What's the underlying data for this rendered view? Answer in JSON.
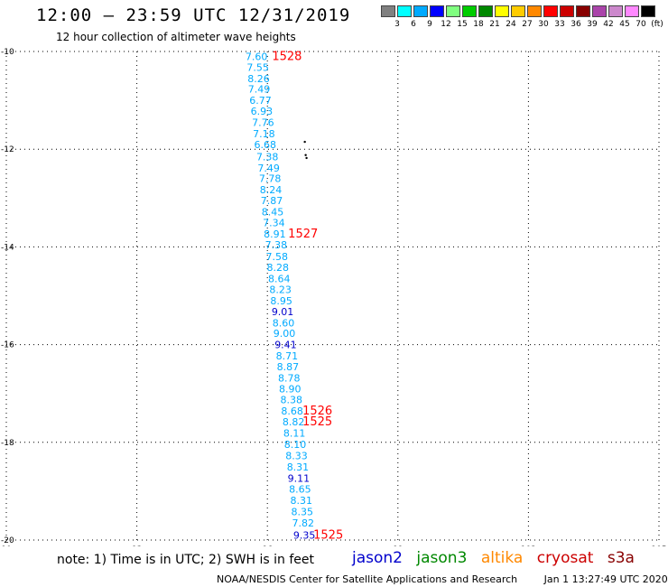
{
  "header": {
    "title": "12:00 – 23:59 UTC 12/31/2019",
    "subtitle": "12 hour collection of altimeter wave heights"
  },
  "color_scale": {
    "labels": [
      "3",
      "6",
      "9",
      "12",
      "15",
      "18",
      "21",
      "24",
      "27",
      "30",
      "33",
      "36",
      "39",
      "42",
      "45",
      "70",
      "(ft)"
    ],
    "colors": [
      "#808080",
      "#00ffff",
      "#00aaff",
      "#0000ff",
      "#80ff80",
      "#00cc00",
      "#008800",
      "#ffff00",
      "#ffcc00",
      "#ff8800",
      "#ff0000",
      "#cc0000",
      "#880000",
      "#aa44aa",
      "#cc88cc",
      "#ff88ff",
      "#000000"
    ]
  },
  "chart_data": {
    "type": "scatter",
    "title": "12:00 – 23:59 UTC 12/31/2019",
    "subtitle": "12 hour collection of altimeter wave heights",
    "xlim": [
      90,
      105
    ],
    "ylim": [
      -20,
      -10
    ],
    "x_ticks": [
      "90",
      "93",
      "96",
      "99",
      "102",
      "105"
    ],
    "y_ticks": [
      "-10",
      "-12",
      "-14",
      "-16",
      "-18",
      "-20"
    ],
    "grid": true,
    "wave_heights": [
      {
        "lon": 95.75,
        "lat": -10.1,
        "swh": "7.60",
        "color": "#00aaff"
      },
      {
        "lon": 95.78,
        "lat": -10.32,
        "swh": "7.55",
        "color": "#00aaff"
      },
      {
        "lon": 95.8,
        "lat": -10.55,
        "swh": "8.26",
        "color": "#00aaff"
      },
      {
        "lon": 95.81,
        "lat": -10.77,
        "swh": "7.49",
        "color": "#00aaff"
      },
      {
        "lon": 95.84,
        "lat": -11.0,
        "swh": "6.77",
        "color": "#00aaff"
      },
      {
        "lon": 95.87,
        "lat": -11.22,
        "swh": "6.93",
        "color": "#00aaff"
      },
      {
        "lon": 95.9,
        "lat": -11.45,
        "swh": "7.76",
        "color": "#00aaff"
      },
      {
        "lon": 95.92,
        "lat": -11.68,
        "swh": "7.18",
        "color": "#00aaff"
      },
      {
        "lon": 95.95,
        "lat": -11.9,
        "swh": "6.68",
        "color": "#00aaff"
      },
      {
        "lon": 96.0,
        "lat": -12.15,
        "swh": "7.38",
        "color": "#00aaff"
      },
      {
        "lon": 96.03,
        "lat": -12.38,
        "swh": "7.49",
        "color": "#00aaff"
      },
      {
        "lon": 96.06,
        "lat": -12.6,
        "swh": "7.78",
        "color": "#00aaff"
      },
      {
        "lon": 96.08,
        "lat": -12.83,
        "swh": "8.24",
        "color": "#00aaff"
      },
      {
        "lon": 96.1,
        "lat": -13.05,
        "swh": "7.87",
        "color": "#00aaff"
      },
      {
        "lon": 96.12,
        "lat": -13.28,
        "swh": "8.45",
        "color": "#00aaff"
      },
      {
        "lon": 96.15,
        "lat": -13.5,
        "swh": "7.34",
        "color": "#00aaff"
      },
      {
        "lon": 96.17,
        "lat": -13.73,
        "swh": "8.91",
        "color": "#00aaff"
      },
      {
        "lon": 96.2,
        "lat": -13.96,
        "swh": "7.38",
        "color": "#00aaff"
      },
      {
        "lon": 96.22,
        "lat": -14.2,
        "swh": "7.58",
        "color": "#00aaff"
      },
      {
        "lon": 96.24,
        "lat": -14.42,
        "swh": "8.28",
        "color": "#00aaff"
      },
      {
        "lon": 96.27,
        "lat": -14.65,
        "swh": "8.64",
        "color": "#00aaff"
      },
      {
        "lon": 96.3,
        "lat": -14.87,
        "swh": "8.23",
        "color": "#00aaff"
      },
      {
        "lon": 96.32,
        "lat": -15.1,
        "swh": "8.95",
        "color": "#00aaff"
      },
      {
        "lon": 96.35,
        "lat": -15.32,
        "swh": "9.01",
        "color": "#0000cc"
      },
      {
        "lon": 96.37,
        "lat": -15.55,
        "swh": "8.60",
        "color": "#00aaff"
      },
      {
        "lon": 96.39,
        "lat": -15.77,
        "swh": "9.00",
        "color": "#00aaff"
      },
      {
        "lon": 96.42,
        "lat": -16.0,
        "swh": "9.41",
        "color": "#0000cc"
      },
      {
        "lon": 96.45,
        "lat": -16.23,
        "swh": "8.71",
        "color": "#00aaff"
      },
      {
        "lon": 96.47,
        "lat": -16.45,
        "swh": "8.87",
        "color": "#00aaff"
      },
      {
        "lon": 96.5,
        "lat": -16.68,
        "swh": "8.78",
        "color": "#00aaff"
      },
      {
        "lon": 96.52,
        "lat": -16.9,
        "swh": "8.90",
        "color": "#00aaff"
      },
      {
        "lon": 96.55,
        "lat": -17.13,
        "swh": "8.38",
        "color": "#00aaff"
      },
      {
        "lon": 96.57,
        "lat": -17.36,
        "swh": "8.68",
        "color": "#00aaff"
      },
      {
        "lon": 96.6,
        "lat": -17.58,
        "swh": "8.82",
        "color": "#00aaff"
      },
      {
        "lon": 96.62,
        "lat": -17.81,
        "swh": "8.11",
        "color": "#00aaff"
      },
      {
        "lon": 96.64,
        "lat": -18.04,
        "swh": "8.10",
        "color": "#00aaff"
      },
      {
        "lon": 96.67,
        "lat": -18.27,
        "swh": "8.33",
        "color": "#00aaff"
      },
      {
        "lon": 96.7,
        "lat": -18.5,
        "swh": "8.31",
        "color": "#00aaff"
      },
      {
        "lon": 96.72,
        "lat": -18.73,
        "swh": "9.11",
        "color": "#0000cc"
      },
      {
        "lon": 96.75,
        "lat": -18.96,
        "swh": "8.65",
        "color": "#00aaff"
      },
      {
        "lon": 96.78,
        "lat": -19.19,
        "swh": "8.31",
        "color": "#00aaff"
      },
      {
        "lon": 96.8,
        "lat": -19.42,
        "swh": "8.35",
        "color": "#00aaff"
      },
      {
        "lon": 96.82,
        "lat": -19.65,
        "swh": "7.82",
        "color": "#00aaff"
      },
      {
        "lon": 96.85,
        "lat": -19.9,
        "swh": "9.35",
        "color": "#0000cc"
      }
    ],
    "time_labels": [
      {
        "lon": 96.45,
        "lat": -10.1,
        "text": "1528",
        "color": "#ff0000"
      },
      {
        "lon": 96.82,
        "lat": -13.73,
        "text": "1527",
        "color": "#ff0000"
      },
      {
        "lon": 97.15,
        "lat": -17.36,
        "text": "1526",
        "color": "#ff0000"
      },
      {
        "lon": 97.15,
        "lat": -17.58,
        "text": "1525",
        "color": "#ff0000"
      },
      {
        "lon": 97.4,
        "lat": -19.9,
        "text": "1525",
        "color": "#ff0000"
      }
    ],
    "land_points": [
      {
        "lon": 96.86,
        "lat": -11.85
      },
      {
        "lon": 96.88,
        "lat": -12.12
      },
      {
        "lon": 96.9,
        "lat": -12.18
      }
    ]
  },
  "note": "note: 1) Time is in UTC; 2) SWH is in feet",
  "missions": [
    {
      "name": "jason2",
      "color": "#0000cc"
    },
    {
      "name": "jason3",
      "color": "#008800"
    },
    {
      "name": "altika",
      "color": "#ff8800"
    },
    {
      "name": "cryosat",
      "color": "#cc0000"
    },
    {
      "name": "s3a",
      "color": "#880000"
    }
  ],
  "footer": {
    "center": "NOAA/NESDIS Center for Satellite Applications and Research",
    "timestamp": "Jan  1 13:27:49 UTC 2020"
  }
}
